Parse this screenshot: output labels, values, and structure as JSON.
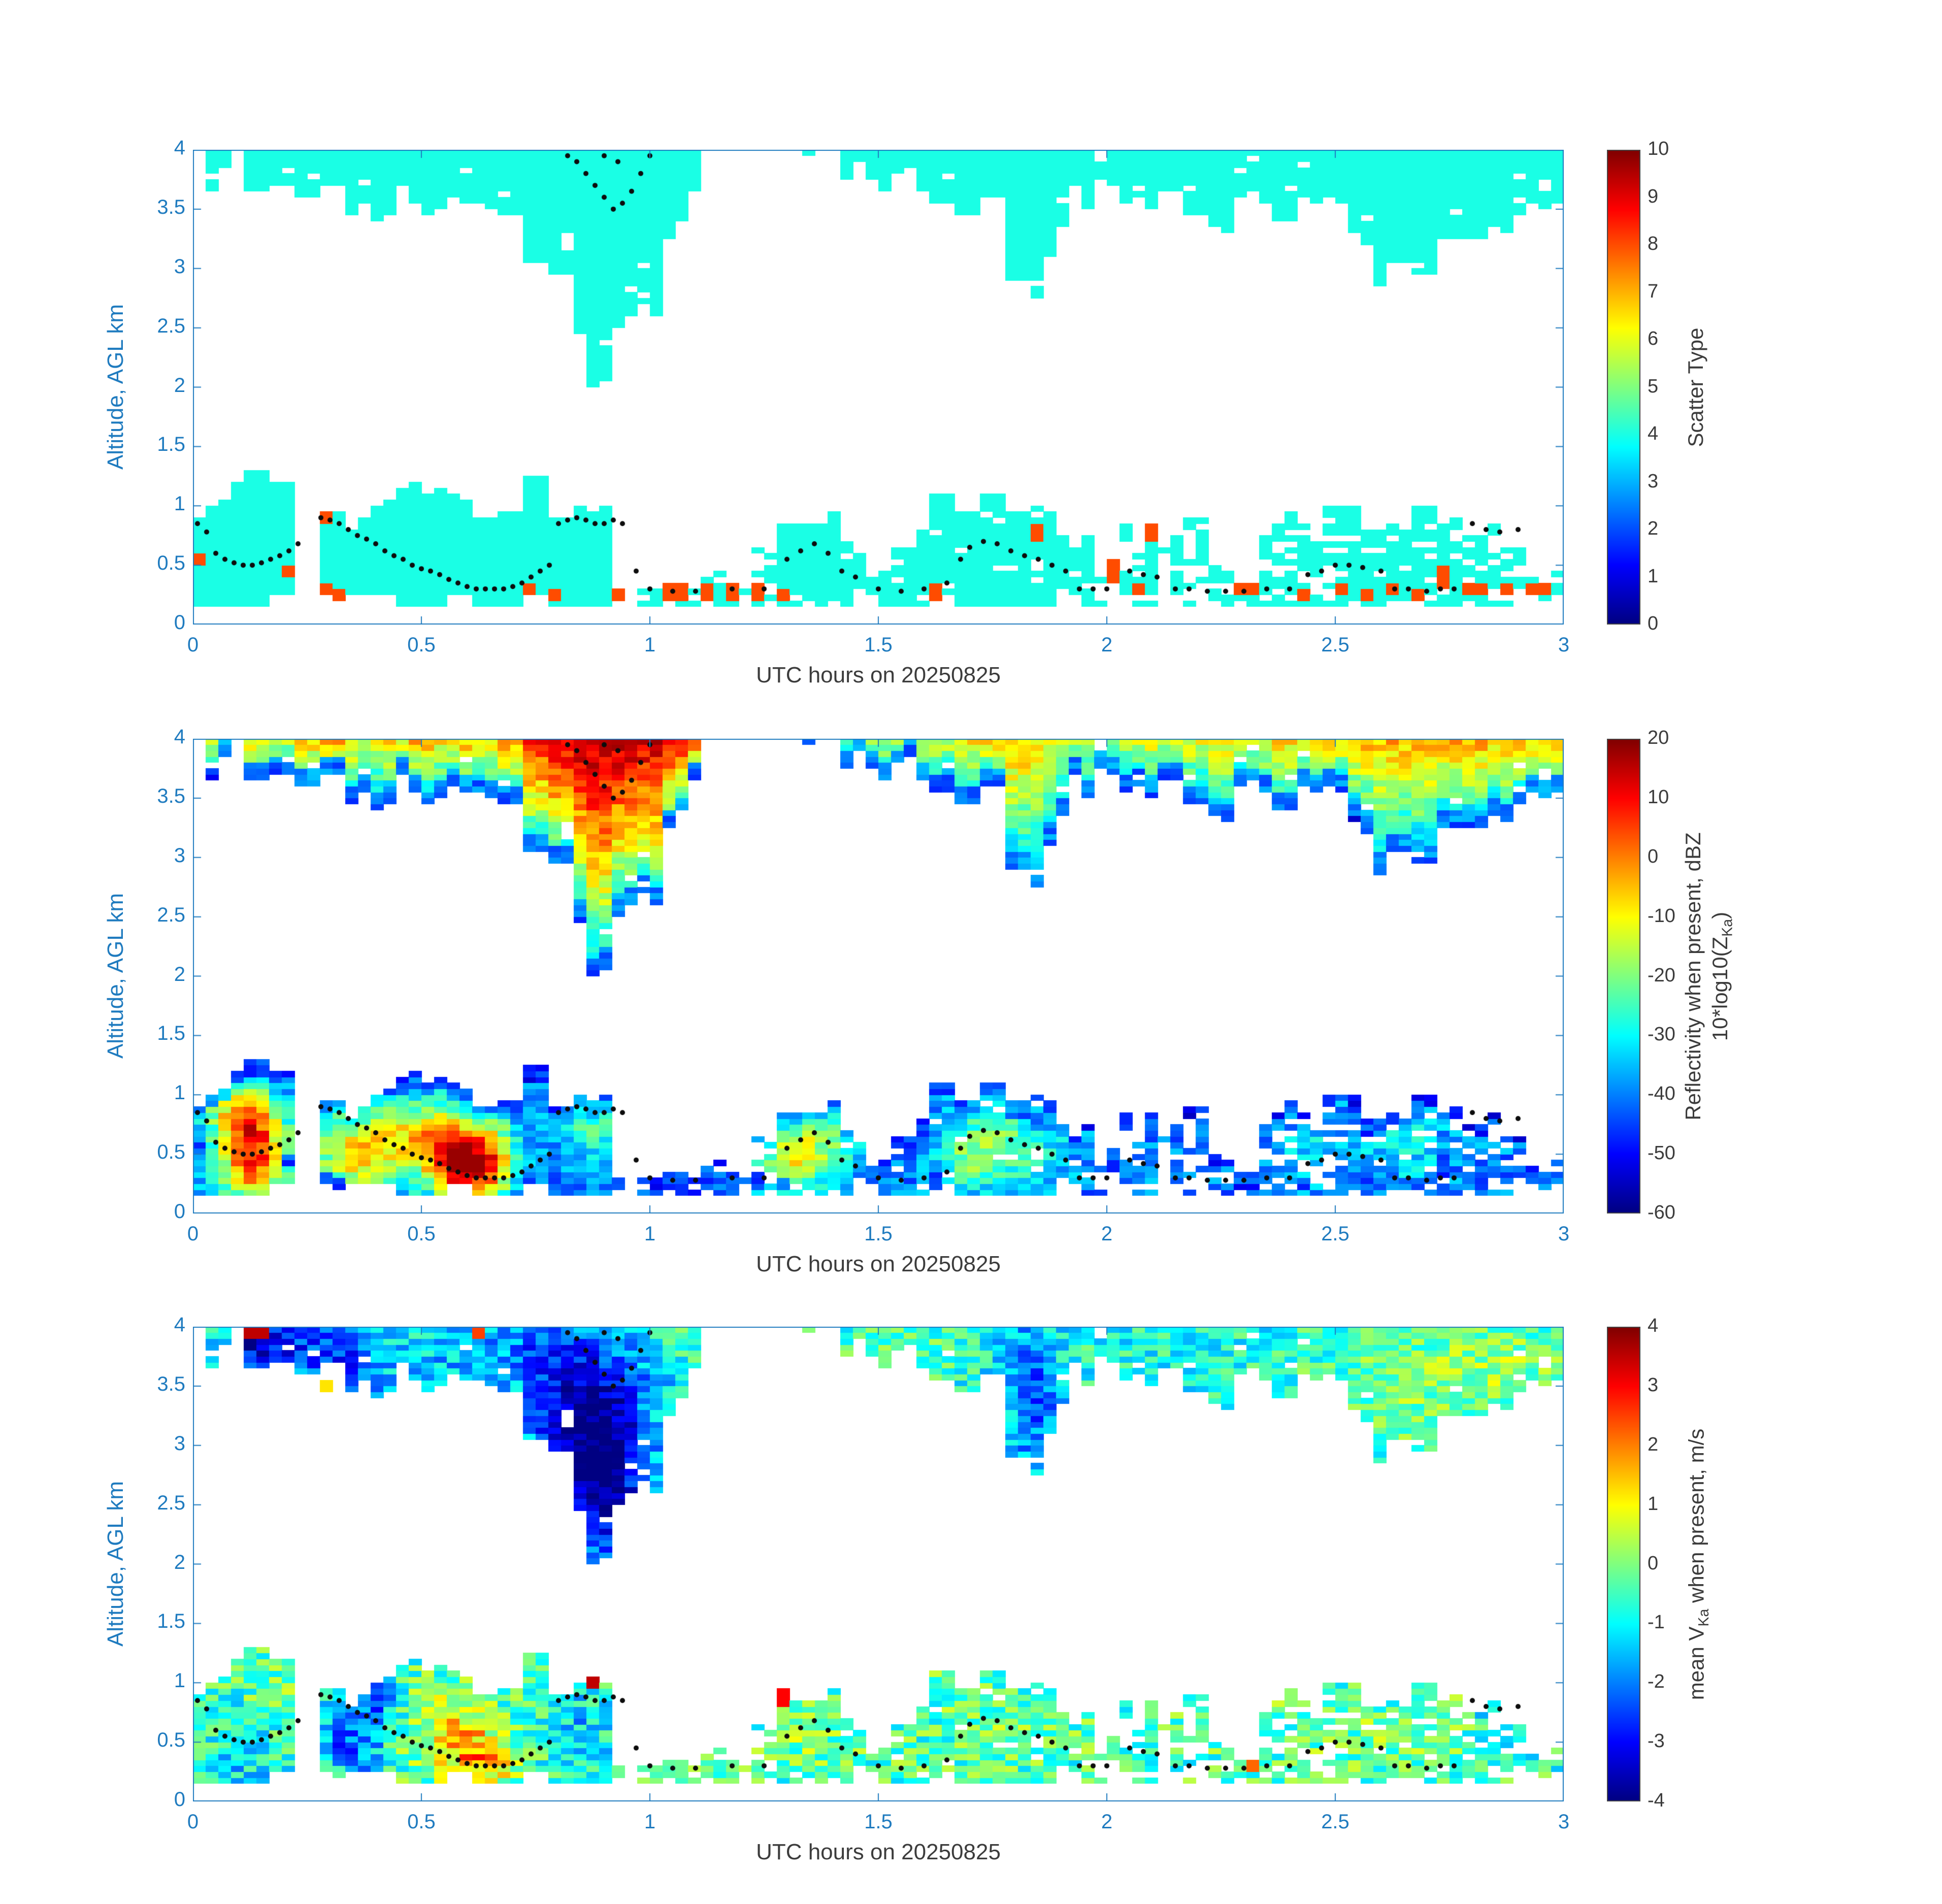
{
  "figure": {
    "background": "#ffffff",
    "axis_color": "#1f7bbf",
    "text_color": "#3c3c3c",
    "colormap": "jet"
  },
  "chart_data": {
    "type": "heatmap",
    "x": {
      "label": "UTC hours on 20250825",
      "lim": [
        0,
        3
      ],
      "ticks": [
        0,
        0.5,
        1,
        1.5,
        2,
        2.5,
        3
      ],
      "tick_labels": [
        "0",
        "0.5",
        "1",
        "1.5",
        "2",
        "2.5",
        "3"
      ]
    },
    "y": {
      "label": "Altitude, AGL km",
      "lim": [
        0,
        4
      ],
      "ticks": [
        0,
        0.5,
        1,
        1.5,
        2,
        2.5,
        3,
        3.5,
        4
      ],
      "tick_labels": [
        "0",
        "0.5",
        "1",
        "1.5",
        "2",
        "2.5",
        "3",
        "3.5",
        "4"
      ]
    },
    "grid": {
      "nt": 108,
      "nz": 80
    },
    "envelopes": {
      "dt": 0.05,
      "upper_base": [
        null,
        3.75,
        3.9,
        3.6,
        3.75,
        3.45,
        3.55,
        3.4,
        3.5,
        3.55,
        3.4,
        3.5,
        3.45,
        3.6,
        3.5,
        3.1,
        2.95,
        2.55,
        2.1,
        2.55,
        2.65,
        3.3,
        3.6,
        3.9,
        null,
        null,
        null,
        3.9,
        null,
        3.85,
        3.7,
        3.8,
        3.6,
        3.7,
        3.55,
        3.5,
        3.0,
        2.85,
        3.2,
        3.55,
        3.8,
        3.65,
        3.55,
        3.6,
        3.45,
        3.35,
        3.5,
        3.45,
        3.3,
        3.5,
        3.55,
        3.3,
        2.95,
        3.05,
        2.9,
        3.2,
        3.35,
        3.45,
        3.4,
        3.5,
        3.55
      ],
      "lower_top": [
        1.0,
        1.1,
        1.25,
        1.3,
        1.1,
        null,
        0.95,
        0.9,
        1.0,
        1.05,
        1.1,
        1.15,
        1.1,
        1.0,
        0.85,
        1.3,
        0.9,
        0.95,
        0.9,
        null,
        0.35,
        0.35,
        0.35,
        0.4,
        0.35,
        0.6,
        0.95,
        1.0,
        0.95,
        0.7,
        0.45,
        0.65,
        0.8,
        1.0,
        0.95,
        1.0,
        0.85,
        0.9,
        0.85,
        0.7,
        0.35,
        0.8,
        0.7,
        0.85,
        0.8,
        0.45,
        0.4,
        0.8,
        0.85,
        0.75,
        1.0,
        0.9,
        0.95,
        0.9,
        1.1,
        0.85,
        0.8,
        0.85,
        0.6,
        0.35,
        0.35
      ],
      "lower_cover": [
        1,
        1,
        1,
        1,
        1,
        0,
        1,
        1,
        1,
        1,
        1,
        1,
        1,
        1,
        1,
        1,
        1,
        1,
        1,
        0.2,
        0.3,
        0.35,
        0.35,
        0.4,
        0.5,
        0.6,
        0.9,
        0.9,
        0.9,
        0.85,
        0.8,
        0.9,
        0.95,
        0.95,
        0.95,
        0.95,
        0.9,
        0.9,
        0.9,
        0.85,
        0.3,
        0.55,
        0.55,
        0.6,
        0.55,
        0.5,
        0.5,
        0.65,
        0.7,
        0.7,
        0.75,
        0.8,
        0.8,
        0.8,
        0.8,
        0.75,
        0.7,
        0.7,
        0.6,
        0.4,
        0.4
      ]
    },
    "scatter_accents": [
      [
        0.02,
        0.55
      ],
      [
        0.22,
        0.45
      ],
      [
        0.3,
        0.3
      ],
      [
        0.33,
        0.25
      ],
      [
        0.3,
        0.9
      ],
      [
        0.73,
        0.3
      ],
      [
        0.78,
        0.25
      ],
      [
        0.92,
        0.25
      ],
      [
        1.03,
        0.28
      ],
      [
        1.08,
        0.28
      ],
      [
        1.13,
        0.28
      ],
      [
        1.18,
        0.28
      ],
      [
        1.23,
        0.28
      ],
      [
        1.3,
        0.25
      ],
      [
        1.62,
        0.28
      ],
      [
        1.85,
        0.78
      ],
      [
        2.02,
        0.5
      ],
      [
        2.02,
        0.42
      ],
      [
        2.07,
        0.3
      ],
      [
        2.1,
        0.78
      ],
      [
        2.28,
        0.3
      ],
      [
        2.33,
        0.3
      ],
      [
        2.42,
        0.25
      ],
      [
        2.52,
        0.3
      ],
      [
        2.57,
        0.25
      ],
      [
        2.62,
        0.3
      ],
      [
        2.68,
        0.25
      ],
      [
        2.73,
        0.45
      ],
      [
        2.73,
        0.35
      ],
      [
        2.78,
        0.3
      ],
      [
        2.82,
        0.3
      ],
      [
        2.88,
        0.3
      ],
      [
        2.93,
        0.3
      ],
      [
        2.97,
        0.3
      ]
    ],
    "track_dots": [
      [
        0.01,
        0.85
      ],
      [
        0.03,
        0.78
      ],
      [
        0.05,
        0.6
      ],
      [
        0.07,
        0.55
      ],
      [
        0.09,
        0.52
      ],
      [
        0.11,
        0.5
      ],
      [
        0.13,
        0.5
      ],
      [
        0.15,
        0.52
      ],
      [
        0.17,
        0.55
      ],
      [
        0.19,
        0.58
      ],
      [
        0.21,
        0.62
      ],
      [
        0.23,
        0.68
      ],
      [
        0.28,
        0.9
      ],
      [
        0.3,
        0.88
      ],
      [
        0.32,
        0.85
      ],
      [
        0.34,
        0.8
      ],
      [
        0.36,
        0.75
      ],
      [
        0.38,
        0.72
      ],
      [
        0.4,
        0.68
      ],
      [
        0.42,
        0.62
      ],
      [
        0.44,
        0.58
      ],
      [
        0.46,
        0.55
      ],
      [
        0.48,
        0.5
      ],
      [
        0.5,
        0.47
      ],
      [
        0.52,
        0.45
      ],
      [
        0.54,
        0.42
      ],
      [
        0.56,
        0.38
      ],
      [
        0.58,
        0.35
      ],
      [
        0.6,
        0.32
      ],
      [
        0.62,
        0.3
      ],
      [
        0.64,
        0.3
      ],
      [
        0.66,
        0.3
      ],
      [
        0.68,
        0.3
      ],
      [
        0.7,
        0.32
      ],
      [
        0.72,
        0.35
      ],
      [
        0.74,
        0.4
      ],
      [
        0.76,
        0.45
      ],
      [
        0.78,
        0.5
      ],
      [
        0.8,
        0.85
      ],
      [
        0.82,
        0.88
      ],
      [
        0.84,
        0.9
      ],
      [
        0.86,
        0.88
      ],
      [
        0.88,
        0.85
      ],
      [
        0.9,
        0.85
      ],
      [
        0.92,
        0.88
      ],
      [
        0.94,
        0.85
      ],
      [
        0.97,
        0.45
      ],
      [
        1.0,
        0.3
      ],
      [
        1.05,
        0.28
      ],
      [
        1.1,
        0.28
      ],
      [
        1.18,
        0.3
      ],
      [
        1.25,
        0.3
      ],
      [
        1.3,
        0.55
      ],
      [
        1.33,
        0.62
      ],
      [
        1.36,
        0.68
      ],
      [
        1.39,
        0.6
      ],
      [
        1.42,
        0.45
      ],
      [
        1.45,
        0.4
      ],
      [
        1.5,
        0.3
      ],
      [
        1.55,
        0.28
      ],
      [
        1.6,
        0.3
      ],
      [
        1.65,
        0.35
      ],
      [
        1.68,
        0.55
      ],
      [
        1.7,
        0.65
      ],
      [
        1.73,
        0.7
      ],
      [
        1.76,
        0.68
      ],
      [
        1.79,
        0.62
      ],
      [
        1.82,
        0.58
      ],
      [
        1.85,
        0.55
      ],
      [
        1.88,
        0.5
      ],
      [
        1.91,
        0.45
      ],
      [
        1.94,
        0.3
      ],
      [
        1.97,
        0.3
      ],
      [
        2.0,
        0.3
      ],
      [
        2.05,
        0.45
      ],
      [
        2.08,
        0.42
      ],
      [
        2.11,
        0.4
      ],
      [
        2.15,
        0.3
      ],
      [
        2.18,
        0.3
      ],
      [
        2.22,
        0.28
      ],
      [
        2.26,
        0.28
      ],
      [
        2.3,
        0.28
      ],
      [
        2.35,
        0.3
      ],
      [
        2.4,
        0.3
      ],
      [
        2.44,
        0.42
      ],
      [
        2.47,
        0.45
      ],
      [
        2.5,
        0.5
      ],
      [
        2.53,
        0.5
      ],
      [
        2.56,
        0.48
      ],
      [
        2.6,
        0.45
      ],
      [
        2.63,
        0.3
      ],
      [
        2.66,
        0.3
      ],
      [
        2.7,
        0.28
      ],
      [
        2.73,
        0.3
      ],
      [
        2.76,
        0.3
      ],
      [
        2.8,
        0.85
      ],
      [
        2.83,
        0.8
      ],
      [
        2.86,
        0.78
      ],
      [
        2.9,
        0.8
      ]
    ],
    "upper_dots": [
      [
        0.82,
        3.95
      ],
      [
        0.84,
        3.9
      ],
      [
        0.86,
        3.8
      ],
      [
        0.88,
        3.7
      ],
      [
        0.9,
        3.6
      ],
      [
        0.92,
        3.5
      ],
      [
        0.94,
        3.55
      ],
      [
        0.96,
        3.65
      ],
      [
        0.98,
        3.8
      ],
      [
        1.0,
        3.95
      ],
      [
        0.9,
        3.95
      ],
      [
        0.93,
        3.9
      ]
    ],
    "panels": [
      {
        "id": "scatter_type",
        "colorbar": {
          "lim": [
            0,
            10
          ],
          "ticks": [
            0,
            1,
            2,
            3,
            4,
            5,
            6,
            7,
            8,
            9,
            10
          ],
          "label_lines": [
            [
              {
                "text": "Scatter Type"
              }
            ]
          ]
        },
        "field": {
          "kind": "categorical",
          "base_value": 4,
          "accent_value": 8
        }
      },
      {
        "id": "reflectivity",
        "colorbar": {
          "lim": [
            -60,
            20
          ],
          "ticks": [
            -60,
            -50,
            -40,
            -30,
            -20,
            -10,
            0,
            10,
            20
          ],
          "label_lines": [
            [
              {
                "text": "Reflectivity when present, dBZ"
              }
            ],
            [
              {
                "text": "10*log10(Z"
              },
              {
                "sub": "Ka"
              },
              {
                "text": ")"
              }
            ]
          ]
        },
        "field": {
          "kind": "reflectivity",
          "gamma": 0.55,
          "lower_base": -40,
          "vtop": [
            -20,
            -12,
            -2,
            -6,
            -15,
            -6,
            -1,
            -6,
            -12,
            -8,
            -4,
            -8,
            -4,
            -10,
            -3,
            8,
            13,
            15,
            16,
            15,
            14,
            10,
            4,
            -18,
            -25,
            -25,
            -25,
            -20,
            -25,
            -18,
            -14,
            -16,
            -11,
            -14,
            -9,
            -7,
            -4,
            -7,
            -11,
            -14,
            -18,
            -14,
            -11,
            -13,
            -11,
            -9,
            -11,
            -9,
            -7,
            -9,
            -7,
            -4,
            -7,
            -4,
            -5,
            -4,
            -3,
            -5,
            -4,
            -5,
            -4
          ],
          "lower_blobs": [
            [
              0.13,
              0.5,
              0.05,
              0.3,
              48
            ],
            [
              0.1,
              0.85,
              0.06,
              0.15,
              22
            ],
            [
              0.42,
              0.65,
              0.09,
              0.25,
              26
            ],
            [
              0.35,
              0.45,
              0.06,
              0.2,
              20
            ],
            [
              0.6,
              0.38,
              0.05,
              0.2,
              46
            ],
            [
              0.55,
              0.6,
              0.05,
              0.22,
              28
            ],
            [
              0.66,
              0.5,
              0.04,
              0.25,
              22
            ],
            [
              0.87,
              0.75,
              0.05,
              0.2,
              16
            ],
            [
              1.35,
              0.6,
              0.07,
              0.25,
              24
            ],
            [
              1.3,
              0.35,
              0.04,
              0.15,
              18
            ],
            [
              1.75,
              0.6,
              0.05,
              0.25,
              18
            ],
            [
              1.68,
              0.45,
              0.04,
              0.2,
              14
            ],
            [
              1.85,
              0.5,
              0.05,
              0.2,
              12
            ],
            [
              2.45,
              0.5,
              0.06,
              0.2,
              8
            ],
            [
              2.65,
              0.6,
              0.06,
              0.25,
              10
            ]
          ]
        }
      },
      {
        "id": "velocity",
        "colorbar": {
          "lim": [
            -4,
            4
          ],
          "ticks": [
            -4,
            -3,
            -2,
            -1,
            0,
            1,
            2,
            3,
            4
          ],
          "label_lines": [
            [
              {
                "text": "mean V"
              },
              {
                "sub": "Ka"
              },
              {
                "text": " when present, m/s"
              }
            ]
          ]
        },
        "field": {
          "kind": "velocity",
          "upper_mean": -0.9,
          "upper_noise": 0.85,
          "lower_mean": -0.45,
          "lower_noise": 1.0,
          "upper_blobs": [
            [
              0.9,
              2.75,
              0.06,
              0.45,
              -3.2
            ],
            [
              0.88,
              3.45,
              0.09,
              0.35,
              -1.6
            ],
            [
              0.8,
              3.2,
              0.05,
              0.5,
              -1.2
            ],
            [
              0.22,
              3.85,
              0.06,
              0.25,
              -1.6
            ],
            [
              0.34,
              3.7,
              0.05,
              0.3,
              -1.3
            ],
            [
              0.13,
              3.9,
              0.04,
              0.2,
              -2.0
            ],
            [
              1.85,
              3.25,
              0.04,
              0.45,
              -1.2
            ],
            [
              1.8,
              3.8,
              0.06,
              0.3,
              -0.8
            ],
            [
              2.68,
              3.45,
              0.22,
              0.5,
              0.75
            ],
            [
              2.9,
              3.7,
              0.15,
              0.3,
              0.6
            ],
            [
              1.55,
              3.85,
              0.25,
              0.25,
              0.5
            ],
            [
              1.15,
              3.95,
              0.1,
              0.15,
              0.4
            ],
            [
              0.55,
              3.6,
              0.1,
              0.3,
              -0.6
            ],
            [
              0.75,
              3.9,
              0.08,
              0.2,
              -0.9
            ]
          ],
          "lower_blobs": [
            [
              0.6,
              0.45,
              0.05,
              0.22,
              1.7
            ],
            [
              0.52,
              0.65,
              0.07,
              0.25,
              0.9
            ],
            [
              0.65,
              0.3,
              0.04,
              0.15,
              1.2
            ],
            [
              0.36,
              0.6,
              0.045,
              0.3,
              -1.5
            ],
            [
              0.42,
              0.85,
              0.04,
              0.2,
              -1.1
            ],
            [
              0.3,
              0.4,
              0.05,
              0.2,
              -0.8
            ],
            [
              0.12,
              0.45,
              0.05,
              0.25,
              -1.0
            ],
            [
              0.18,
              0.8,
              0.05,
              0.2,
              0.6
            ],
            [
              1.35,
              0.6,
              0.07,
              0.25,
              0.5
            ],
            [
              1.75,
              0.6,
              0.1,
              0.3,
              0.3
            ],
            [
              2.6,
              0.55,
              0.2,
              0.3,
              0.35
            ],
            [
              2.9,
              0.8,
              0.06,
              0.3,
              -1.2
            ],
            [
              0.85,
              0.6,
              0.05,
              0.3,
              -0.9
            ]
          ],
          "accents": [
            [
              0.14,
              3.95,
              3.5
            ],
            [
              0.62,
              3.97,
              2.5
            ],
            [
              0.88,
              1.0,
              3.5
            ],
            [
              2.33,
              0.3,
              2.2
            ],
            [
              1.3,
              0.88,
              3.0
            ],
            [
              0.28,
              3.5,
              1.2
            ]
          ]
        }
      }
    ]
  }
}
